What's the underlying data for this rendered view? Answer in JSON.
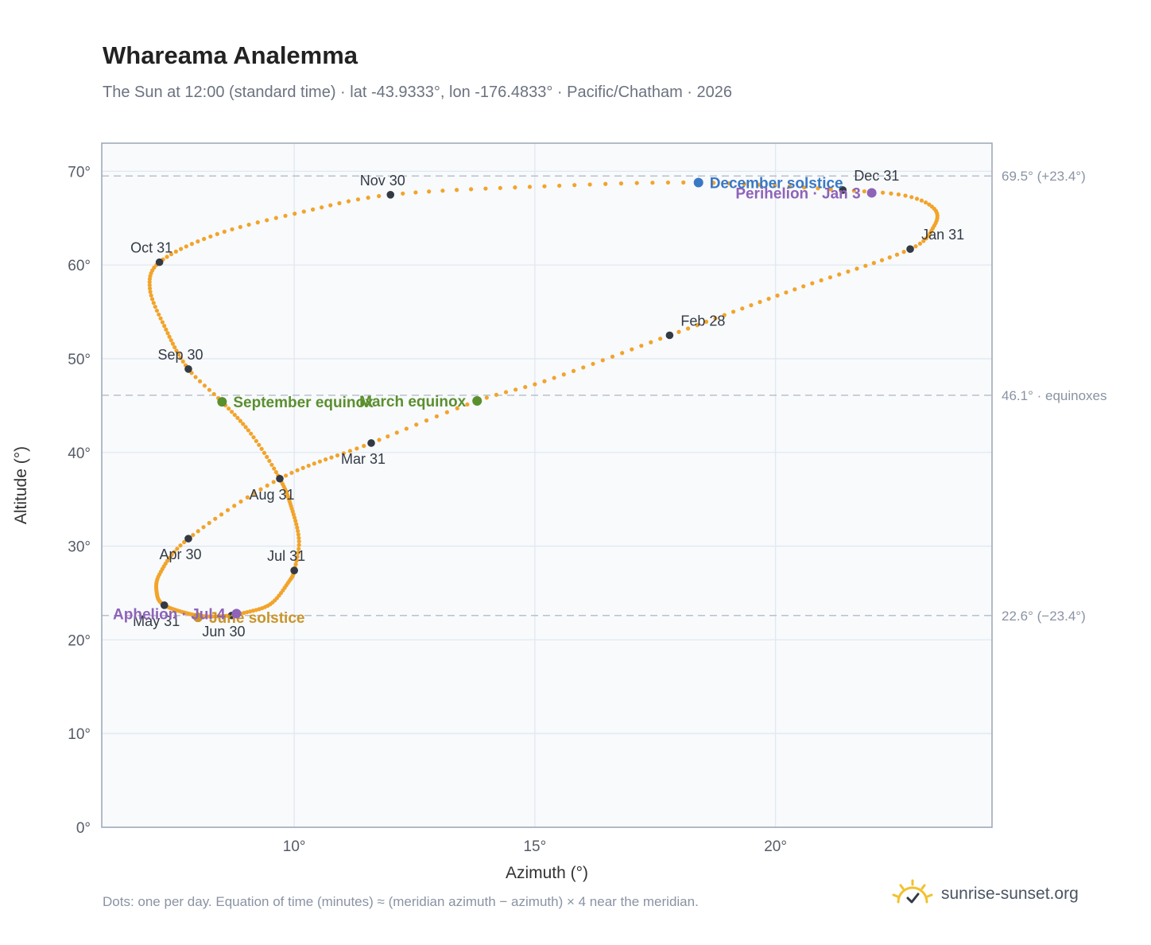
{
  "chart_data": {
    "type": "scatter",
    "title": "Whareama Analemma",
    "subtitle": "The Sun at 12:00 (standard time) · lat -43.9333°, lon -176.4833° · Pacific/Chatham · 2026",
    "xlabel": "Azimuth (°)",
    "ylabel": "Altitude (°)",
    "xlim": [
      6,
      24.5
    ],
    "ylim": [
      0,
      73
    ],
    "xticks": [
      {
        "value": 10,
        "label": "10°"
      },
      {
        "value": 15,
        "label": "15°"
      },
      {
        "value": 20,
        "label": "20°"
      }
    ],
    "yticks": [
      {
        "value": 0,
        "label": "0°"
      },
      {
        "value": 10,
        "label": "10°"
      },
      {
        "value": 20,
        "label": "20°"
      },
      {
        "value": 30,
        "label": "30°"
      },
      {
        "value": 40,
        "label": "40°"
      },
      {
        "value": 50,
        "label": "50°"
      },
      {
        "value": 60,
        "label": "60°"
      },
      {
        "value": 70,
        "label": "70°"
      }
    ],
    "grid": true,
    "reference_lines": [
      {
        "y": 69.5,
        "label": "69.5° (+23.4°)"
      },
      {
        "y": 46.1,
        "label": "46.1° · equinoxes"
      },
      {
        "y": 22.6,
        "label": "22.6° (−23.4°)"
      }
    ],
    "path_points": [
      {
        "day": 1,
        "az": 21.4,
        "alt": 68.0
      },
      {
        "day": 8,
        "az": 22.7,
        "alt": 67.4
      },
      {
        "day": 15,
        "az": 23.3,
        "alt": 66.0
      },
      {
        "day": 22,
        "az": 23.3,
        "alt": 64.2
      },
      {
        "day": 31,
        "az": 22.8,
        "alt": 61.7
      },
      {
        "day": 45,
        "az": 20.4,
        "alt": 57.4
      },
      {
        "day": 59,
        "az": 17.8,
        "alt": 52.5
      },
      {
        "day": 72,
        "az": 15.2,
        "alt": 47.6
      },
      {
        "day": 79,
        "az": 13.8,
        "alt": 45.5
      },
      {
        "day": 90,
        "az": 11.6,
        "alt": 41.0
      },
      {
        "day": 105,
        "az": 9.7,
        "alt": 37.2
      },
      {
        "day": 120,
        "az": 7.8,
        "alt": 30.8
      },
      {
        "day": 132,
        "az": 7.2,
        "alt": 27.0
      },
      {
        "day": 142,
        "az": 7.15,
        "alt": 24.8
      },
      {
        "day": 151,
        "az": 7.3,
        "alt": 23.7
      },
      {
        "day": 163,
        "az": 7.8,
        "alt": 22.8
      },
      {
        "day": 172,
        "az": 8.2,
        "alt": 22.5
      },
      {
        "day": 181,
        "az": 8.7,
        "alt": 22.6
      },
      {
        "day": 185,
        "az": 8.9,
        "alt": 22.8
      },
      {
        "day": 195,
        "az": 9.5,
        "alt": 23.8
      },
      {
        "day": 205,
        "az": 9.9,
        "alt": 26.3
      },
      {
        "day": 212,
        "az": 10.0,
        "alt": 27.4
      },
      {
        "day": 220,
        "az": 10.1,
        "alt": 30.5
      },
      {
        "day": 230,
        "az": 9.95,
        "alt": 34.0
      },
      {
        "day": 243,
        "az": 9.7,
        "alt": 37.2
      },
      {
        "day": 255,
        "az": 9.1,
        "alt": 42.0
      },
      {
        "day": 265,
        "az": 8.5,
        "alt": 45.4
      },
      {
        "day": 273,
        "az": 7.8,
        "alt": 48.9
      },
      {
        "day": 285,
        "az": 7.3,
        "alt": 53.5
      },
      {
        "day": 295,
        "az": 7.0,
        "alt": 57.5
      },
      {
        "day": 304,
        "az": 7.2,
        "alt": 60.3
      },
      {
        "day": 315,
        "az": 8.4,
        "alt": 63.3
      },
      {
        "day": 325,
        "az": 10.2,
        "alt": 65.7
      },
      {
        "day": 334,
        "az": 12.0,
        "alt": 67.5
      },
      {
        "day": 345,
        "az": 15.2,
        "alt": 68.4
      },
      {
        "day": 355,
        "az": 18.4,
        "alt": 68.8
      },
      {
        "day": 365,
        "az": 21.4,
        "alt": 68.0
      }
    ],
    "month_markers": [
      {
        "label": "Jan 31",
        "az": 22.8,
        "alt": 61.7,
        "label_pos": "above-right"
      },
      {
        "label": "Feb 28",
        "az": 17.8,
        "alt": 52.5,
        "label_pos": "above-right"
      },
      {
        "label": "Mar 31",
        "az": 11.6,
        "alt": 41.0,
        "label_pos": "below-left"
      },
      {
        "label": "Apr 30",
        "az": 7.8,
        "alt": 30.8,
        "label_pos": "below-left"
      },
      {
        "label": "May 31",
        "az": 7.3,
        "alt": 23.7,
        "label_pos": "below-left"
      },
      {
        "label": "Jun 30",
        "az": 8.7,
        "alt": 22.6,
        "label_pos": "below-left"
      },
      {
        "label": "Jul 31",
        "az": 10.0,
        "alt": 27.4,
        "label_pos": "above-left"
      },
      {
        "label": "Aug 31",
        "az": 9.7,
        "alt": 37.2,
        "label_pos": "below-left"
      },
      {
        "label": "Sep 30",
        "az": 7.8,
        "alt": 48.9,
        "label_pos": "above-left"
      },
      {
        "label": "Oct 31",
        "az": 7.2,
        "alt": 60.3,
        "label_pos": "above-left"
      },
      {
        "label": "Nov 30",
        "az": 12.0,
        "alt": 67.5,
        "label_pos": "above-left"
      },
      {
        "label": "Dec 31",
        "az": 21.4,
        "alt": 68.0,
        "label_pos": "above-right"
      }
    ],
    "events": [
      {
        "label": "December solstice",
        "az": 18.4,
        "alt": 68.8,
        "color": "#3a78c4",
        "label_pos": "right"
      },
      {
        "label": "Perihelion · Jan 3",
        "az": 22.0,
        "alt": 67.7,
        "color": "#8e63b8",
        "label_pos": "left"
      },
      {
        "label": "March equinox",
        "az": 13.8,
        "alt": 45.5,
        "color": "#5a8f2e",
        "label_pos": "left"
      },
      {
        "label": "September equinox",
        "az": 8.5,
        "alt": 45.4,
        "color": "#5a8f2e",
        "label_pos": "right"
      },
      {
        "label": "June solstice",
        "az": 8.0,
        "alt": 22.4,
        "color": "#c9952a",
        "label_pos": "right"
      },
      {
        "label": "Aphelion · Jul 4",
        "az": 8.8,
        "alt": 22.8,
        "color": "#8e63b8",
        "label_pos": "left"
      }
    ],
    "colors": {
      "path": "#f2a42a",
      "marker": "#333a44",
      "frame": "#9aa5b5",
      "grid": "#e2e8f0",
      "plot_bg": "#f8fafc",
      "reference": "#b9c1cc"
    }
  },
  "footnote": "Dots: one per day. Equation of time (minutes) ≈ (meridian azimuth − azimuth) × 4 near the meridian.",
  "brand": {
    "name": "sunrise-sunset.org",
    "icon": "sun-check-icon",
    "icon_color": "#f2c12e"
  }
}
